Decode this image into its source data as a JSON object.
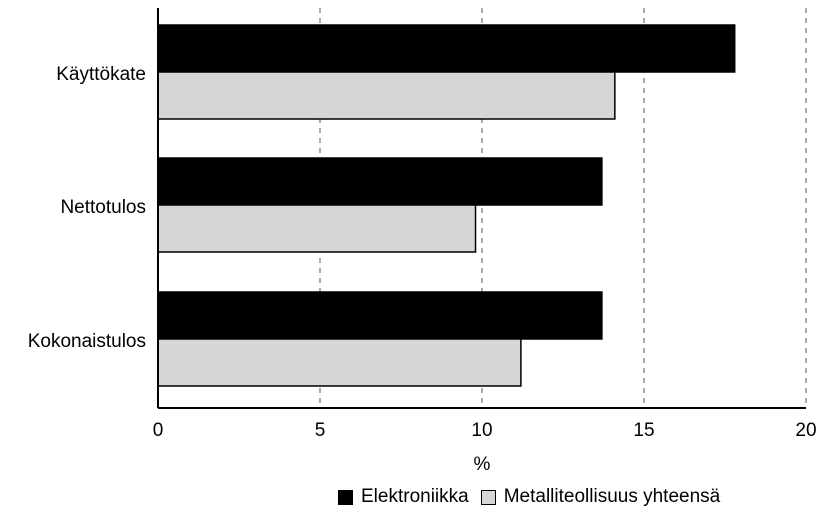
{
  "chart_data": {
    "type": "bar",
    "orientation": "horizontal",
    "categories": [
      "Käyttökate",
      "Nettotulos",
      "Kokonaistulos"
    ],
    "series": [
      {
        "name": "Elektroniikka",
        "values": [
          17.8,
          13.7,
          13.7
        ],
        "color": "#000000"
      },
      {
        "name": "Metalliteollisuus yhteensä",
        "values": [
          14.1,
          9.8,
          11.2
        ],
        "color": "#d6d6d6"
      }
    ],
    "xlabel": "%",
    "xlim": [
      0,
      20
    ],
    "xticks": [
      "0",
      "5",
      "10",
      "15",
      "20"
    ],
    "grid": "vertical dashed",
    "legend_position": "bottom"
  }
}
